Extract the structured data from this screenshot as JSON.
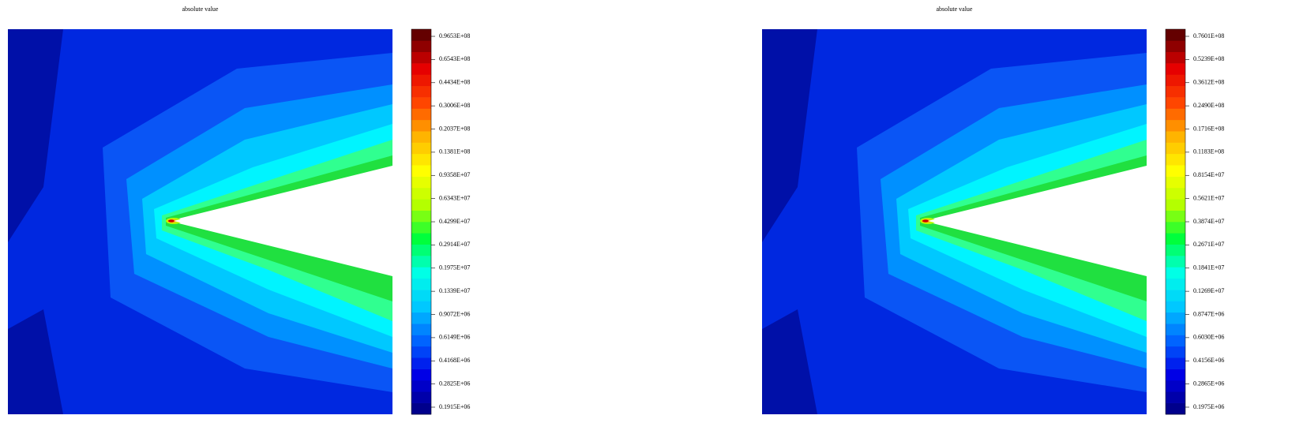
{
  "chart_data": [
    {
      "type": "contour",
      "title": "absolute value",
      "log_scale": true,
      "colormap": [
        "#00008c",
        "#0000e6",
        "#0064ff",
        "#00c8ff",
        "#00ffe6",
        "#00ff3c",
        "#b4ff00",
        "#ffff00",
        "#ffb400",
        "#ff4600",
        "#e60000",
        "#640000"
      ],
      "ylim": [
        170000,
        108800000
      ],
      "yticks": [
        {
          "value": 96530000,
          "label": "0.9653E+08"
        },
        {
          "value": 65430000,
          "label": "0.6543E+08"
        },
        {
          "value": 44340000,
          "label": "0.4434E+08"
        },
        {
          "value": 30060000,
          "label": "0.3006E+08"
        },
        {
          "value": 20370000,
          "label": "0.2037E+08"
        },
        {
          "value": 13810000,
          "label": "0.1381E+08"
        },
        {
          "value": 9358000,
          "label": "0.9358E+07"
        },
        {
          "value": 6343000,
          "label": "0.6343E+07"
        },
        {
          "value": 4299000,
          "label": "0.4299E+07"
        },
        {
          "value": 2914000,
          "label": "0.2914E+07"
        },
        {
          "value": 1975000,
          "label": "0.1975E+07"
        },
        {
          "value": 1339000,
          "label": "0.1339E+07"
        },
        {
          "value": 907200,
          "label": "0.9072E+06"
        },
        {
          "value": 614900,
          "label": "0.6149E+06"
        },
        {
          "value": 416800,
          "label": "0.4168E+06"
        },
        {
          "value": 282500,
          "label": "0.2825E+06"
        },
        {
          "value": 191500,
          "label": "0.1915E+06"
        }
      ]
    },
    {
      "type": "contour",
      "title": "absolute value",
      "log_scale": true,
      "colormap": [
        "#00008c",
        "#0000e6",
        "#0064ff",
        "#00c8ff",
        "#00ffe6",
        "#00ff3c",
        "#b4ff00",
        "#ffff00",
        "#ffb400",
        "#ff4600",
        "#e60000",
        "#640000"
      ],
      "ylim": [
        176200,
        85200000
      ],
      "yticks": [
        {
          "value": 76010000,
          "label": "0.7601E+08"
        },
        {
          "value": 52390000,
          "label": "0.5239E+08"
        },
        {
          "value": 36120000,
          "label": "0.3612E+08"
        },
        {
          "value": 24900000,
          "label": "0.2490E+08"
        },
        {
          "value": 17160000,
          "label": "0.1716E+08"
        },
        {
          "value": 11830000,
          "label": "0.1183E+08"
        },
        {
          "value": 8154000,
          "label": "0.8154E+07"
        },
        {
          "value": 5621000,
          "label": "0.5621E+07"
        },
        {
          "value": 3874000,
          "label": "0.3874E+07"
        },
        {
          "value": 2671000,
          "label": "0.2671E+07"
        },
        {
          "value": 1841000,
          "label": "0.1841E+07"
        },
        {
          "value": 1269000,
          "label": "0.1269E+07"
        },
        {
          "value": 874700,
          "label": "0.8747E+06"
        },
        {
          "value": 603000,
          "label": "0.6030E+06"
        },
        {
          "value": 415600,
          "label": "0.4156E+06"
        },
        {
          "value": 286500,
          "label": "0.2865E+06"
        },
        {
          "value": 197500,
          "label": "0.1975E+06"
        }
      ]
    }
  ]
}
